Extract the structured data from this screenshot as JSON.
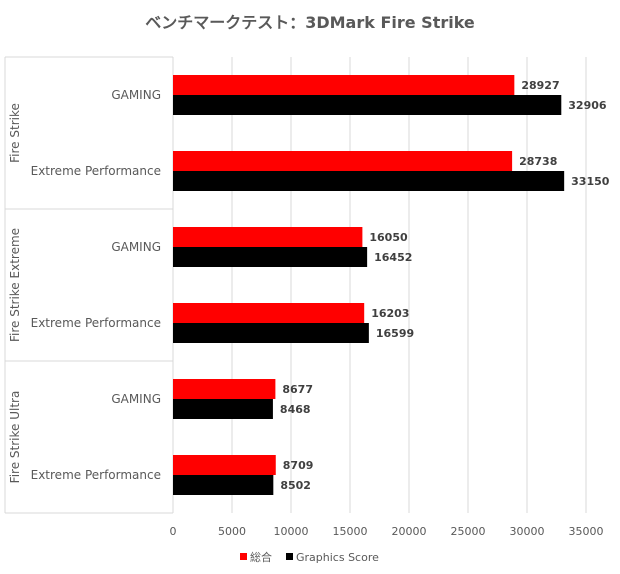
{
  "chart_data": {
    "type": "bar",
    "orientation": "horizontal",
    "title": "ベンチマークテスト：3DMark Fire Strike",
    "groups": [
      {
        "name": "Fire Strike",
        "categories": [
          "GAMING",
          "Extreme Performance"
        ]
      },
      {
        "name": "Fire Strike Extreme",
        "categories": [
          "GAMING",
          "Extreme Performance"
        ]
      },
      {
        "name": "Fire Strike Ultra",
        "categories": [
          "GAMING",
          "Extreme Performance"
        ]
      }
    ],
    "series": [
      {
        "name": "総合",
        "color": "#ff0000",
        "values": [
          28927,
          28738,
          16050,
          16203,
          8677,
          8709
        ]
      },
      {
        "name": "Graphics Score",
        "color": "#000000",
        "values": [
          32906,
          33150,
          16452,
          16599,
          8468,
          8502
        ]
      }
    ],
    "xlim": [
      0,
      35000
    ],
    "xticks": [
      0,
      5000,
      10000,
      15000,
      20000,
      25000,
      30000,
      35000
    ],
    "grid": true,
    "legend": "bottom"
  }
}
